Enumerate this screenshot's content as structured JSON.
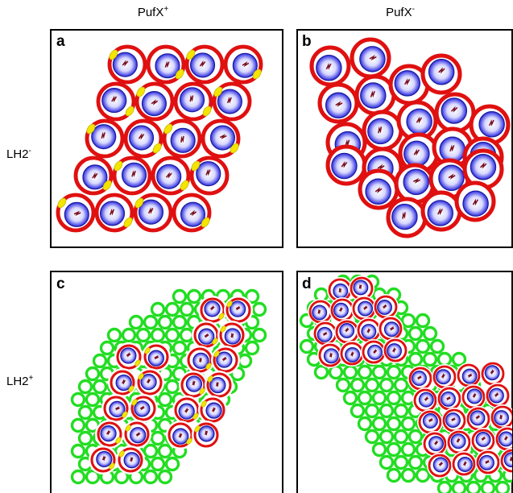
{
  "columns": [
    {
      "text": "PufX",
      "sup": "+"
    },
    {
      "text": "PufX",
      "sup": "-"
    }
  ],
  "rows": [
    {
      "text": "LH2",
      "sup": "-"
    },
    {
      "text": "LH2",
      "sup": "+"
    }
  ],
  "panels": [
    "a",
    "b",
    "c",
    "d"
  ]
}
